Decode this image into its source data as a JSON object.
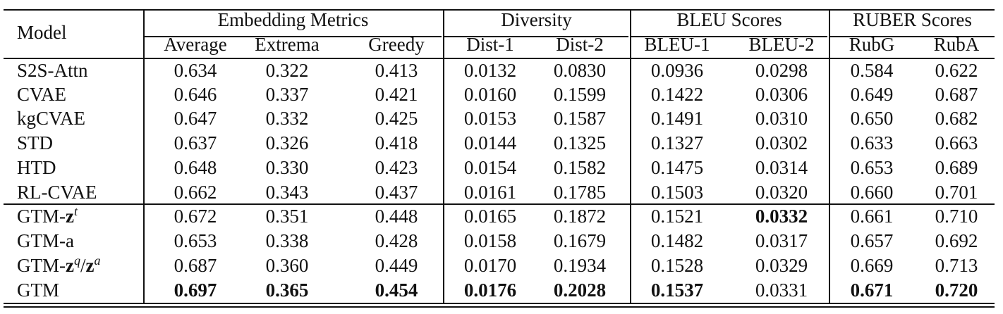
{
  "table": {
    "header": {
      "model": "Model",
      "groups": [
        {
          "label": "Embedding Metrics",
          "columns": [
            "Average",
            "Extrema",
            "Greedy"
          ]
        },
        {
          "label": "Diversity",
          "columns": [
            "Dist-1",
            "Dist-2"
          ]
        },
        {
          "label": "BLEU Scores",
          "columns": [
            "BLEU-1",
            "BLEU-2"
          ]
        },
        {
          "label": "RUBER Scores",
          "columns": [
            "RubG",
            "RubA"
          ]
        }
      ]
    },
    "sections": [
      {
        "rows": [
          {
            "model": [
              {
                "text": "S2S-Attn"
              }
            ],
            "values": [
              "0.634",
              "0.322",
              "0.413",
              "0.0132",
              "0.0830",
              "0.0936",
              "0.0298",
              "0.584",
              "0.622"
            ],
            "bold": []
          },
          {
            "model": [
              {
                "text": "CVAE"
              }
            ],
            "values": [
              "0.646",
              "0.337",
              "0.421",
              "0.0160",
              "0.1599",
              "0.1422",
              "0.0306",
              "0.649",
              "0.687"
            ],
            "bold": []
          },
          {
            "model": [
              {
                "text": "kgCVAE"
              }
            ],
            "values": [
              "0.647",
              "0.332",
              "0.425",
              "0.0153",
              "0.1587",
              "0.1491",
              "0.0310",
              "0.650",
              "0.682"
            ],
            "bold": []
          },
          {
            "model": [
              {
                "text": "STD"
              }
            ],
            "values": [
              "0.637",
              "0.326",
              "0.418",
              "0.0144",
              "0.1325",
              "0.1327",
              "0.0302",
              "0.633",
              "0.663"
            ],
            "bold": []
          },
          {
            "model": [
              {
                "text": "HTD"
              }
            ],
            "values": [
              "0.648",
              "0.330",
              "0.423",
              "0.0154",
              "0.1582",
              "0.1475",
              "0.0314",
              "0.653",
              "0.689"
            ],
            "bold": []
          },
          {
            "model": [
              {
                "text": "RL-CVAE"
              }
            ],
            "values": [
              "0.662",
              "0.343",
              "0.437",
              "0.0161",
              "0.1785",
              "0.1503",
              "0.0320",
              "0.660",
              "0.701"
            ],
            "bold": []
          }
        ]
      },
      {
        "rows": [
          {
            "model": [
              {
                "text": "GTM-"
              },
              {
                "text": "z",
                "bold": true
              },
              {
                "text": "t",
                "sup": true
              }
            ],
            "values": [
              "0.672",
              "0.351",
              "0.448",
              "0.0165",
              "0.1872",
              "0.1521",
              "0.0332",
              "0.661",
              "0.710"
            ],
            "bold": [
              6
            ]
          },
          {
            "model": [
              {
                "text": "GTM-a"
              }
            ],
            "values": [
              "0.653",
              "0.338",
              "0.428",
              "0.0158",
              "0.1679",
              "0.1482",
              "0.0317",
              "0.657",
              "0.692"
            ],
            "bold": []
          },
          {
            "model": [
              {
                "text": "GTM-"
              },
              {
                "text": "z",
                "bold": true
              },
              {
                "text": "q",
                "sup": true
              },
              {
                "text": "/"
              },
              {
                "text": "z",
                "bold": true
              },
              {
                "text": "a",
                "sup": true
              }
            ],
            "values": [
              "0.687",
              "0.360",
              "0.449",
              "0.0170",
              "0.1934",
              "0.1528",
              "0.0329",
              "0.669",
              "0.713"
            ],
            "bold": []
          },
          {
            "model": [
              {
                "text": "GTM"
              }
            ],
            "values": [
              "0.697",
              "0.365",
              "0.454",
              "0.0176",
              "0.2028",
              "0.1537",
              "0.0331",
              "0.671",
              "0.720"
            ],
            "bold": [
              0,
              1,
              2,
              3,
              4,
              5,
              7,
              8
            ]
          }
        ]
      }
    ]
  }
}
